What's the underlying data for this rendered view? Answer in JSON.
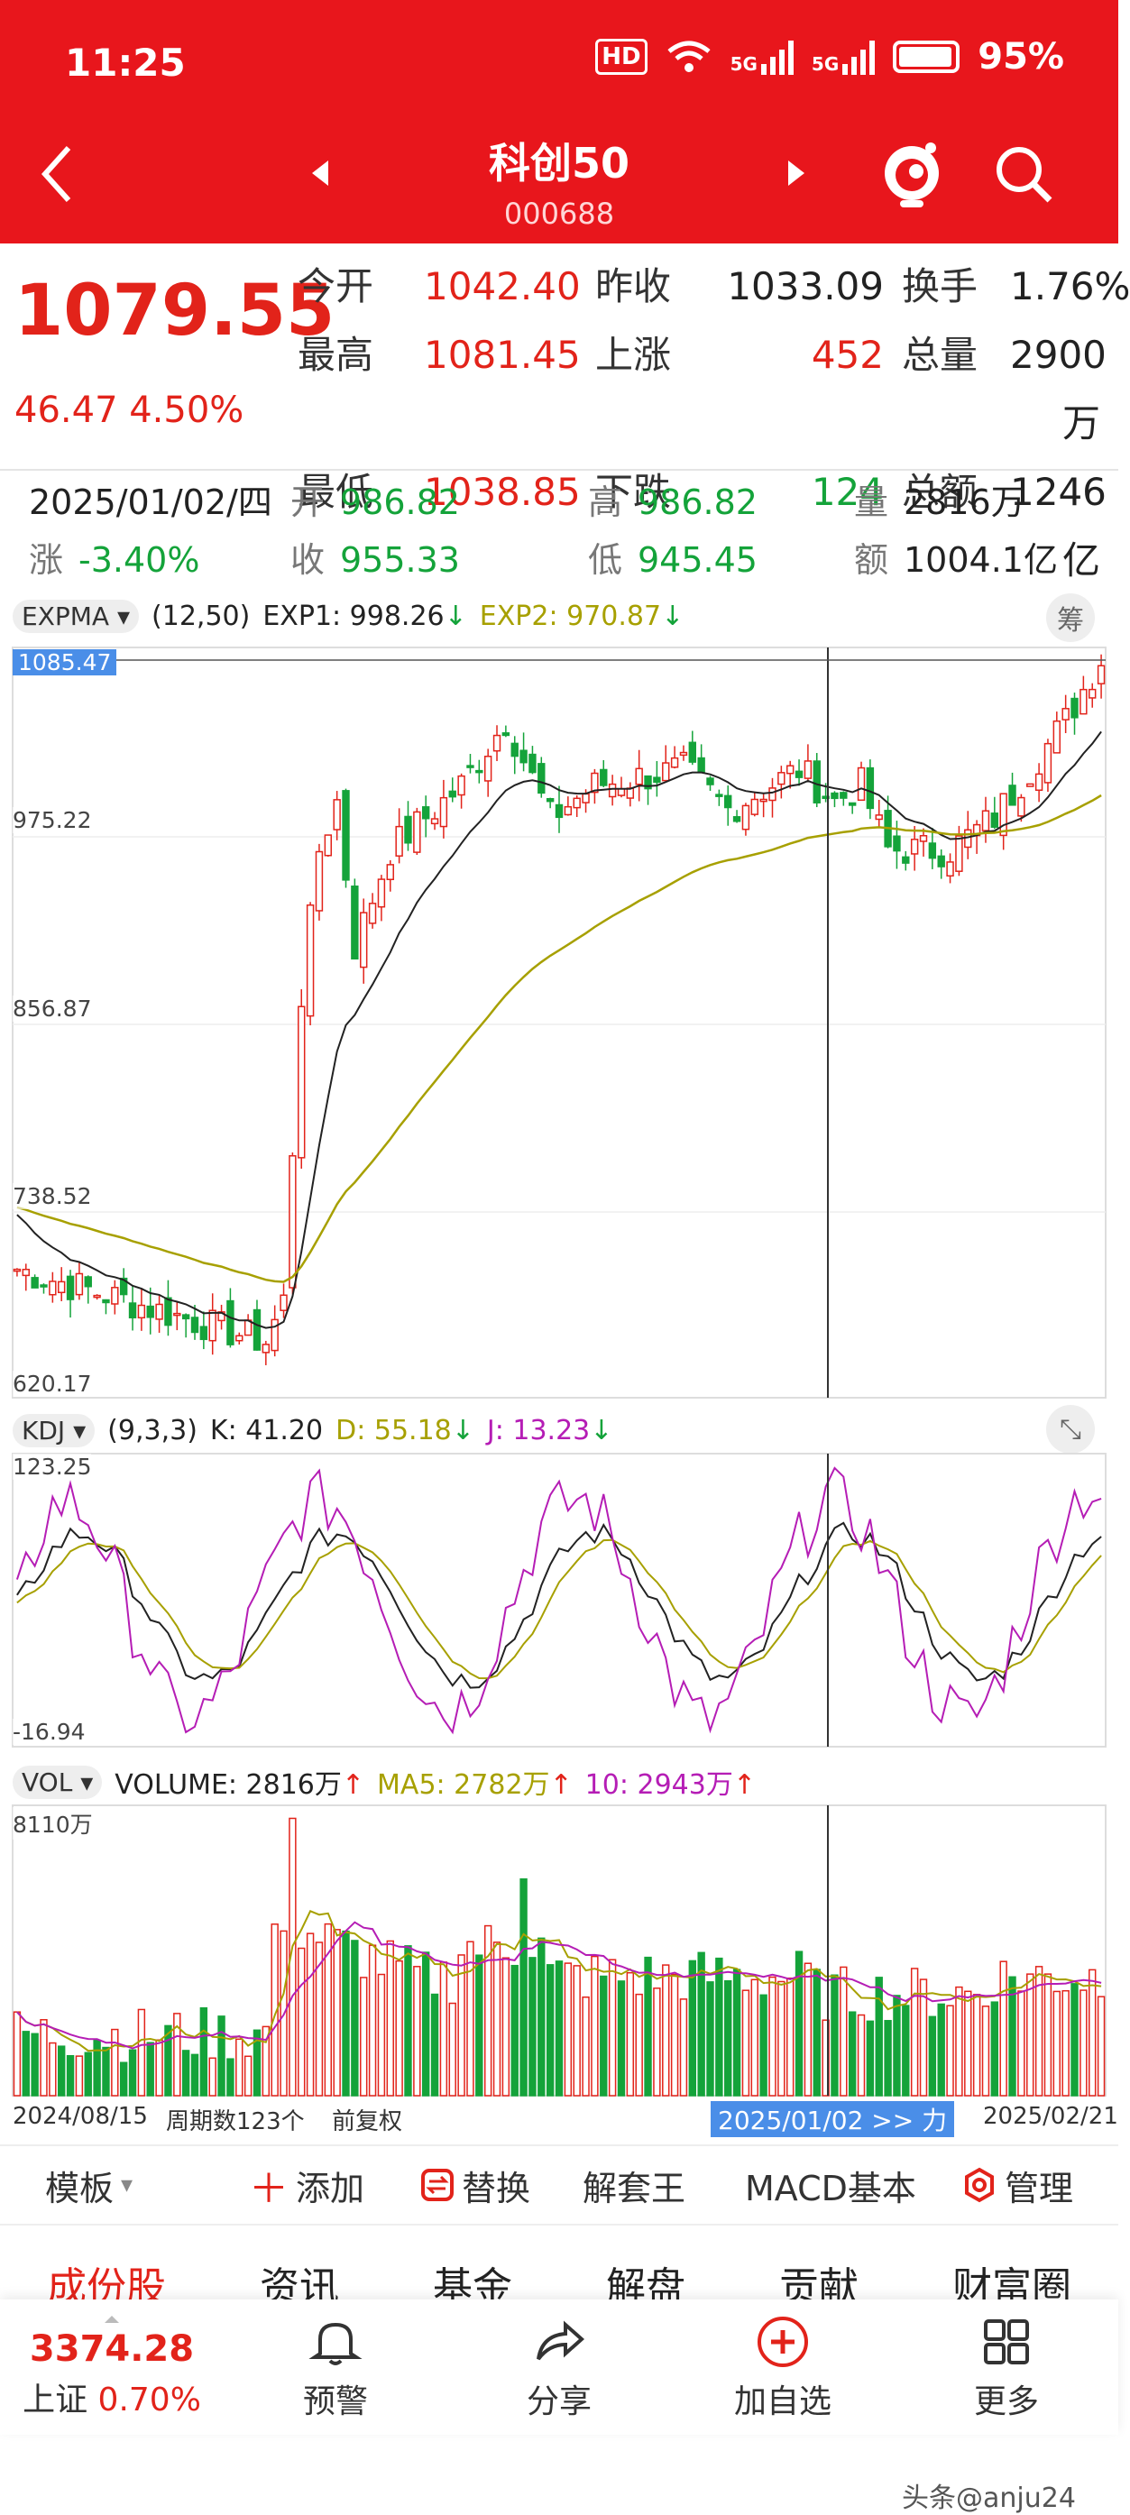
{
  "status_bar": {
    "time": "11:25",
    "net1": "5G",
    "net2": "5G",
    "battery": "95%",
    "hd": "HD"
  },
  "header": {
    "title": "科创50",
    "code": "000688",
    "back_icon": "chevron-left-icon",
    "prev_icon": "triangle-left-icon",
    "next_icon": "triangle-right-icon",
    "mascot_icon": "mascot-icon",
    "search_icon": "search-icon"
  },
  "quote": {
    "price": "1079.55",
    "change": "46.47",
    "change_pct": "4.50%",
    "rows": [
      [
        {
          "label": "今开",
          "value": "1042.40",
          "color": "red"
        },
        {
          "label": "昨收",
          "value": "1033.09",
          "color": "black"
        },
        {
          "label": "换手",
          "value": "1.76%",
          "color": "black"
        }
      ],
      [
        {
          "label": "最高",
          "value": "1081.45",
          "color": "red"
        },
        {
          "label": "上涨",
          "value": "452",
          "color": "red"
        },
        {
          "label": "总量",
          "value": "2900万",
          "color": "black"
        }
      ],
      [
        {
          "label": "最低",
          "value": "1038.85",
          "color": "red"
        },
        {
          "label": "下跌",
          "value": "124",
          "color": "green"
        },
        {
          "label": "总额",
          "value": "1246亿",
          "color": "black"
        }
      ]
    ]
  },
  "history": {
    "date": "2025/01/02/四",
    "open_label": "开",
    "open": "986.82",
    "high_label": "高",
    "high": "986.82",
    "vol_label": "量",
    "vol": "2816万",
    "chg_label": "涨",
    "chg": "-3.40%",
    "close_label": "收",
    "close": "955.33",
    "low_label": "低",
    "low": "945.45",
    "amt_label": "额",
    "amt": "1004.1亿"
  },
  "main_chart": {
    "indicator": "EXPMA",
    "params": "(12,50)",
    "exp1": "EXP1: 998.26",
    "exp2": "EXP2: 970.87",
    "right_btn": "筹",
    "y_labels": [
      "1085.47",
      "975.22",
      "856.87",
      "738.52",
      "620.17"
    ]
  },
  "kdj": {
    "indicator": "KDJ",
    "params": "(9,3,3)",
    "k": "K: 41.20",
    "d": "D: 55.18",
    "j": "J: 13.23",
    "y_top": "123.25",
    "y_bottom": "-16.94",
    "expand_icon": "expand-icon"
  },
  "vol": {
    "indicator": "VOL",
    "volume": "VOLUME: 2816万",
    "ma5": "MA5: 2782万",
    "ma10": "10: 2943万",
    "y_top": "8110万",
    "x_start": "2024/08/15",
    "period": "周期数123个",
    "adjust": "前复权",
    "x_cursor": "2025/01/02 >> 力",
    "x_end": "2025/02/21"
  },
  "toolbar": {
    "template": "模板",
    "add": "添加",
    "replace": "替换",
    "unlock": "解套王",
    "macd": "MACD基本",
    "manage": "管理"
  },
  "tabs": [
    "成份股",
    "资讯",
    "基金",
    "解盘",
    "贡献",
    "财富圈"
  ],
  "bottom": {
    "index_value": "3374.28",
    "index_name": "上证",
    "index_pct": "0.70%",
    "alert": "预警",
    "share": "分享",
    "add_fav": "加自选",
    "more": "更多"
  },
  "watermark": "头条@anju24",
  "colors": {
    "brand": "#e8161c",
    "up": "#e2231a",
    "down": "#14a33a",
    "exp2": "#a7a000",
    "purple": "#b51db5"
  },
  "chart_data": {
    "type": "candlestick",
    "series_count": 123,
    "x_start": "2024/08/15",
    "x_end": "2025/02/21",
    "ylim": [
      620.17,
      1085.47
    ],
    "cursor_date": "2025/01/02"
  }
}
